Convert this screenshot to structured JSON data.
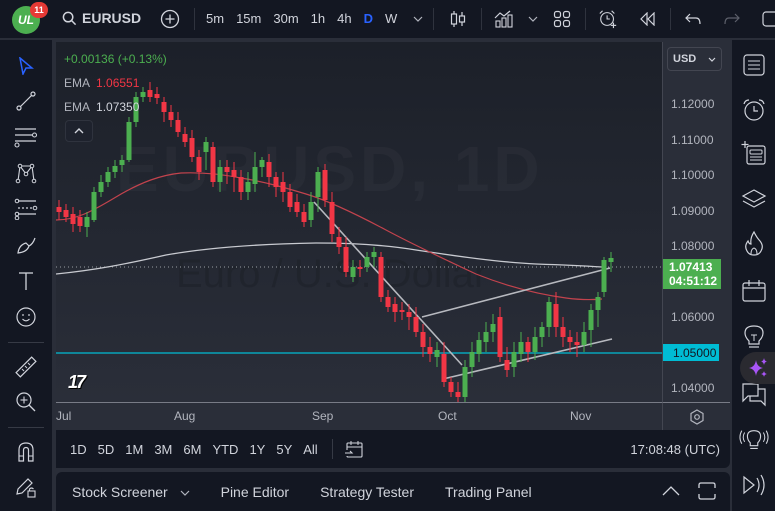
{
  "header": {
    "notification_count": "11",
    "symbol": "EURUSD",
    "intervals": [
      "5m",
      "15m",
      "30m",
      "1h",
      "4h",
      "D",
      "W"
    ],
    "active_interval": "D"
  },
  "legend": {
    "change": "+0.00136 (+0.13%)",
    "ema1_label": "EMA",
    "ema1_value": "1.06551",
    "ema2_label": "EMA",
    "ema2_value": "1.07350"
  },
  "watermark": {
    "symbol": "EURUSD, 1D",
    "name": "Euro / U.S. Dollar"
  },
  "price_axis": {
    "currency": "USD",
    "ticks": [
      "1.12000",
      "1.11000",
      "1.10000",
      "1.09000",
      "1.08000",
      "1.06000",
      "1.04000"
    ],
    "last_price": "1.07413",
    "countdown": "04:51:12",
    "level": "1.05000"
  },
  "time_axis": {
    "labels": [
      "Jul",
      "Aug",
      "Sep",
      "Oct",
      "Nov"
    ]
  },
  "range_bar": {
    "ranges": [
      "1D",
      "5D",
      "1M",
      "3M",
      "6M",
      "YTD",
      "1Y",
      "5Y",
      "All"
    ],
    "clock": "17:08:48 (UTC)"
  },
  "bottom_panel": {
    "tabs": [
      "Stock Screener",
      "Pine Editor",
      "Strategy Tester",
      "Trading Panel"
    ]
  },
  "colors": {
    "up": "#4caf50",
    "down": "#f23645",
    "ema_fast": "#c2434d",
    "ema_slow": "#c8cad0",
    "level_line": "#00bcd4",
    "accent": "#2962ff"
  }
}
